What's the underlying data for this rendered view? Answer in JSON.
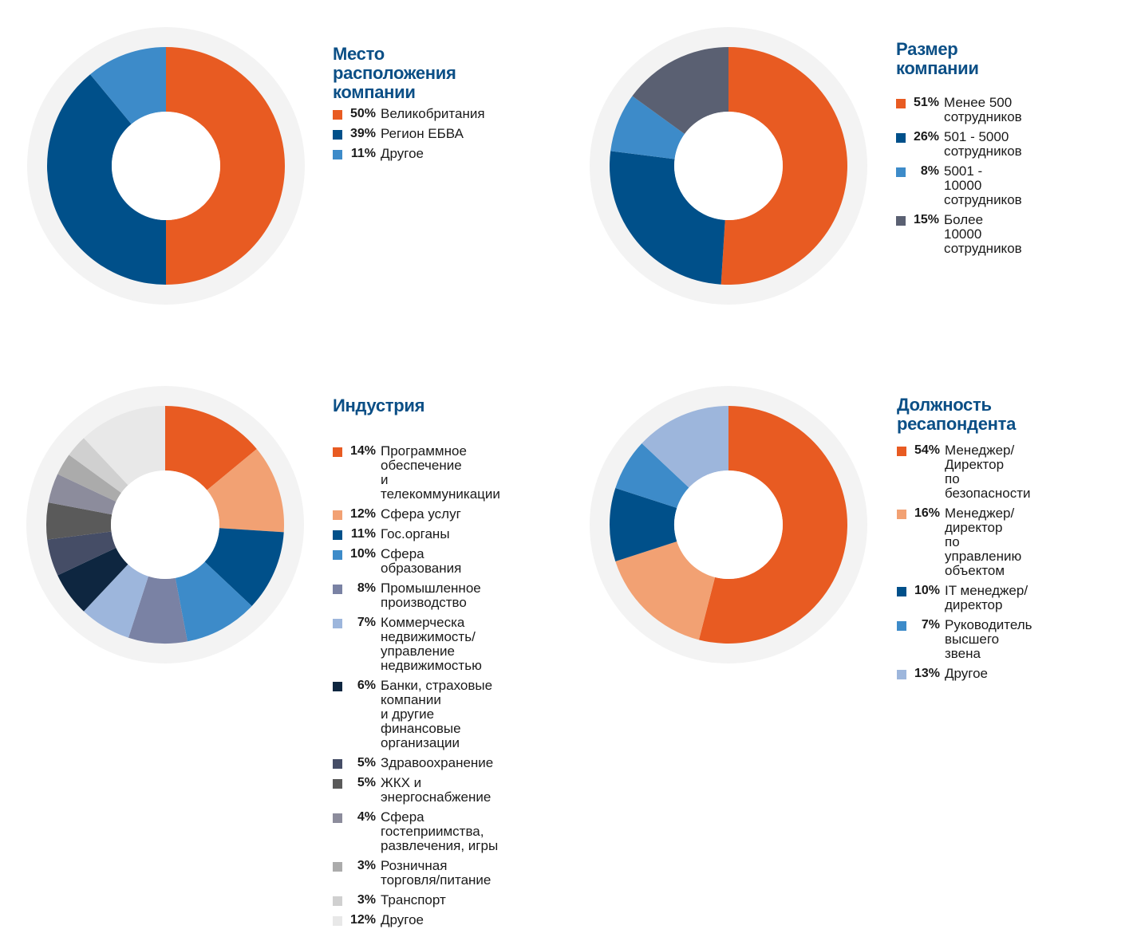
{
  "chart_data": [
    {
      "type": "pie",
      "donut": true,
      "title": "Место расположения\nкомпании",
      "labels": [
        "Великобритания",
        "Регион ЕБВА",
        "Другое"
      ],
      "values": [
        50,
        39,
        11
      ],
      "value_labels": [
        "50%",
        "39%",
        "11%"
      ],
      "colors": [
        "#e85b22",
        "#00508a",
        "#3d8bc9"
      ]
    },
    {
      "type": "pie",
      "donut": true,
      "title": "Размер компании",
      "labels": [
        "Менее 500 сотрудников",
        "501 - 5000 сотрудников",
        "5001 - 10000 сотрудников",
        "Более 10000 сотрудников"
      ],
      "values": [
        51,
        26,
        8,
        15
      ],
      "value_labels": [
        "51%",
        "26%",
        "8%",
        "15%"
      ],
      "colors": [
        "#e85b22",
        "#00508a",
        "#3d8bc9",
        "#5a6072"
      ]
    },
    {
      "type": "pie",
      "donut": true,
      "title": "Индустрия",
      "labels": [
        "Программное обеспечение\nи телекоммуникации",
        "Сфера услуг",
        "Гос.органы",
        "Сфера образования",
        "Промышленное производство",
        "Коммерческа недвижимость/\nуправление недвижимостью",
        "Банки, страховые компании\nи другие финансовые организации",
        "Здравоохранение",
        "ЖКХ и энергоснабжение",
        "Сфера гостеприимства,\nразвлечения, игры",
        "Розничная торговля/питание",
        "Транспорт",
        "Другое"
      ],
      "values": [
        14,
        12,
        11,
        10,
        8,
        7,
        6,
        5,
        5,
        4,
        3,
        3,
        12
      ],
      "value_labels": [
        "14%",
        "12%",
        "11%",
        "10%",
        "8%",
        "7%",
        "6%",
        "5%",
        "5%",
        "4%",
        "3%",
        "3%",
        "12%"
      ],
      "colors": [
        "#e85b22",
        "#f2a173",
        "#00508a",
        "#3d8bc9",
        "#7a82a4",
        "#9db6dc",
        "#0e2640",
        "#454d66",
        "#5a5a5a",
        "#8c8c9c",
        "#ababab",
        "#d0d0d0",
        "#e8e8e8"
      ]
    },
    {
      "type": "pie",
      "donut": true,
      "title": "Должность\nресапондента",
      "labels": [
        "Менеджер/Директор\nпо безопасности",
        "Менеджер/директор\nпо управлению объектом",
        "IT менеджер/директор",
        "Руководитель\nвысшего звена",
        "Другое"
      ],
      "values": [
        54,
        16,
        10,
        7,
        13
      ],
      "value_labels": [
        "54%",
        "16%",
        "10%",
        "7%",
        "13%"
      ],
      "colors": [
        "#e85b22",
        "#f2a173",
        "#00508a",
        "#3d8bc9",
        "#9db6dc"
      ]
    }
  ]
}
